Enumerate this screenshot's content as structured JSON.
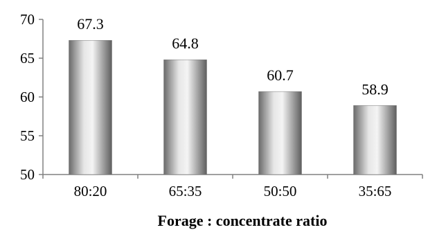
{
  "chart_data": {
    "type": "bar",
    "categories": [
      "80:20",
      "65:35",
      "50:50",
      "35:65"
    ],
    "values": [
      67.3,
      64.8,
      60.7,
      58.9
    ],
    "data_labels": [
      "67.3",
      "64.8",
      "60.7",
      "58.9"
    ],
    "xlabel": "Forage : concentrate ratio",
    "ylim": [
      50,
      70
    ],
    "yticks": [
      50,
      55,
      60,
      65,
      70
    ],
    "grid": false,
    "legend": "none",
    "bar_color": "#9a9a9a"
  }
}
